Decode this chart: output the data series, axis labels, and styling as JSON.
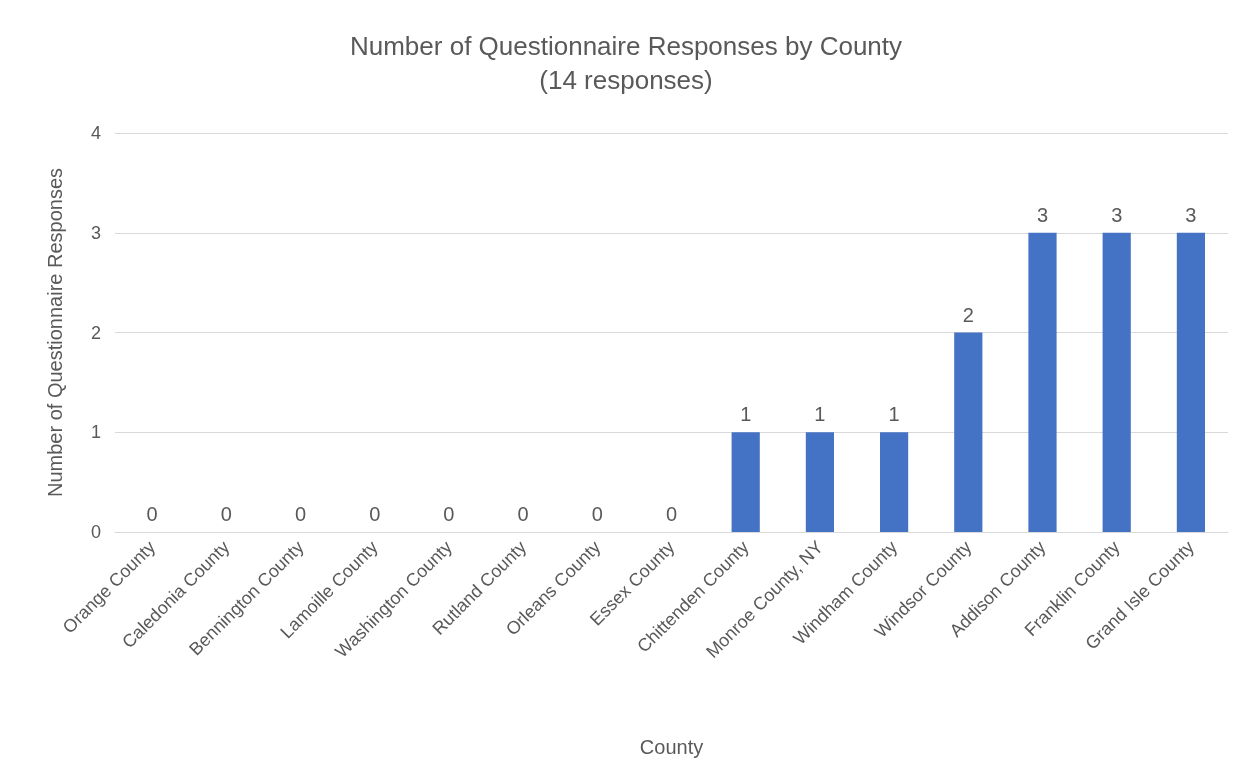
{
  "chart_data": {
    "type": "bar",
    "title": "Number of Questionnaire Responses by County",
    "subtitle": "(14 responses)",
    "xlabel": "County",
    "ylabel": "Number of Questionnaire Responses",
    "categories": [
      "Orange County",
      "Caledonia County",
      "Bennington County",
      "Lamoille County",
      "Washington County",
      "Rutland County",
      "Orleans County",
      "Essex County",
      "Chittenden County",
      "Monroe County, NY",
      "Windham County",
      "Windsor County",
      "Addison County",
      "Franklin County",
      "Grand Isle County"
    ],
    "values": [
      0,
      0,
      0,
      0,
      0,
      0,
      0,
      0,
      1,
      1,
      1,
      2,
      3,
      3,
      3
    ],
    "color": "#4472c4",
    "ylim": [
      0,
      4
    ],
    "yticks": [
      0,
      1,
      2,
      3,
      4
    ],
    "grid": "y",
    "data_labels": true
  }
}
